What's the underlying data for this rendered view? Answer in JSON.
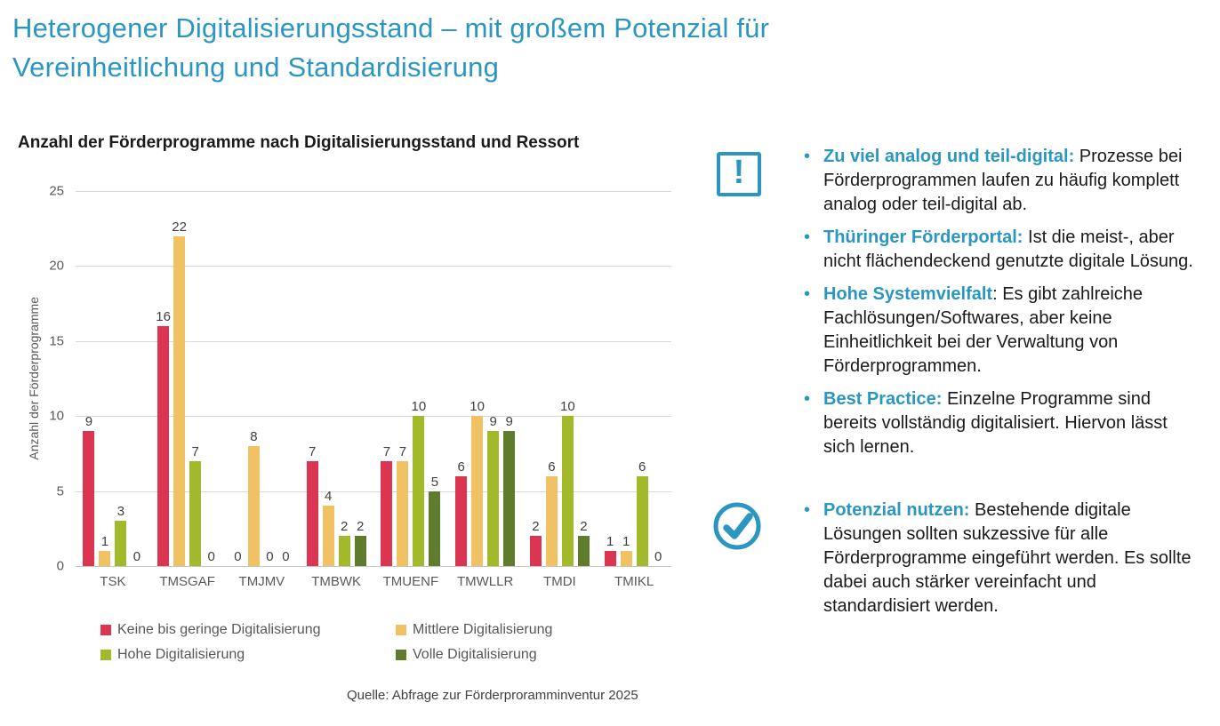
{
  "slide": {
    "title_line1": "Heterogener Digitalisierungsstand – mit großem Potenzial für",
    "title_line2": "Vereinheitlichung und Standardisierung"
  },
  "colors": {
    "accent_blue": "#2B96BF",
    "red": "#DB3551",
    "yellow": "#F0C263",
    "light_green": "#A2B92C",
    "dark_green": "#5F7B2C"
  },
  "chart_data": {
    "type": "bar",
    "title": "Anzahl der Förderprogramme nach Digitalisierungsstand und Ressort",
    "xlabel": "",
    "ylabel": "Anzahl der Förderprogramme",
    "ylim": [
      0,
      25
    ],
    "yticks": [
      0,
      5,
      10,
      15,
      20,
      25
    ],
    "grid": true,
    "legend_position": "bottom",
    "categories": [
      "TSK",
      "TMSGAF",
      "TMJMV",
      "TMBWK",
      "TMUENF",
      "TMWLLR",
      "TMDI",
      "TMIKL"
    ],
    "series": [
      {
        "name": "Keine bis geringe Digitalisierung",
        "color": "#DB3551",
        "values": [
          9,
          16,
          0,
          7,
          7,
          6,
          2,
          1
        ]
      },
      {
        "name": "Mittlere Digitalisierung",
        "color": "#F0C263",
        "values": [
          1,
          22,
          8,
          4,
          7,
          10,
          6,
          1
        ]
      },
      {
        "name": "Hohe Digitalisierung",
        "color": "#A2B92C",
        "values": [
          3,
          7,
          0,
          2,
          10,
          9,
          10,
          6
        ]
      },
      {
        "name": "Volle Digitalisierung",
        "color": "#5F7B2C",
        "values": [
          0,
          0,
          0,
          2,
          5,
          9,
          2,
          0
        ]
      }
    ],
    "source": "Quelle: Abfrage zur Förderproramminventur 2025"
  },
  "insights": {
    "bullet_glyph": "•",
    "warning_glyph": "!",
    "groups": [
      {
        "icon": "exclamation-box-icon",
        "bullets": [
          {
            "lead": "Zu viel analog und teil-digital:",
            "rest": " Prozesse bei Förderprogrammen laufen zu häufig komplett analog oder teil-digital ab."
          },
          {
            "lead": "Thüringer Förderportal:",
            "rest": " Ist die meist-, aber nicht flächendeckend genutzte digitale Lösung."
          },
          {
            "lead": "Hohe Systemvielfalt",
            "rest": ": Es gibt zahlreiche Fachlösungen/Softwares, aber keine Einheitlichkeit bei der Verwaltung von Förderprogrammen."
          },
          {
            "lead": "Best Practice:",
            "rest": " Einzelne Programme sind bereits vollständig digitalisiert. Hiervon lässt sich lernen."
          }
        ]
      },
      {
        "icon": "check-circle-icon",
        "bullets": [
          {
            "lead": "Potenzial nutzen:",
            "rest": " Bestehende digitale Lösungen sollten sukzessive für alle Förderprogramme eingeführt werden. Es sollte dabei auch stärker vereinfacht und standardisiert werden."
          }
        ]
      }
    ]
  }
}
